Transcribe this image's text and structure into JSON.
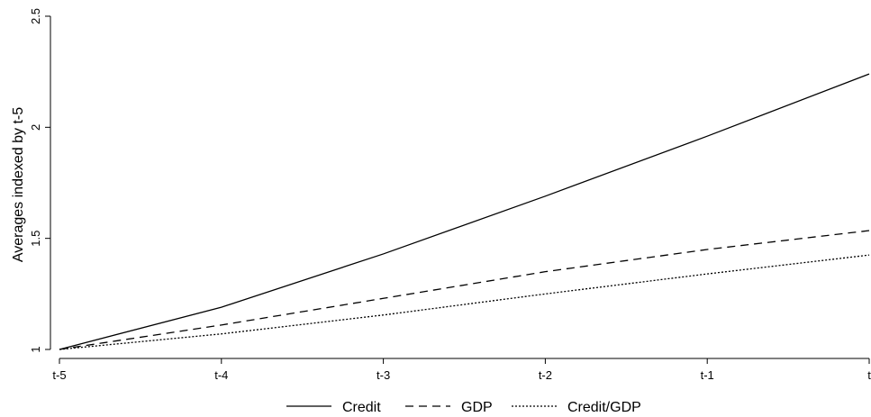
{
  "chart_data": {
    "type": "line",
    "title": "",
    "xlabel": "",
    "ylabel": "Averages indexed by t-5",
    "categories": [
      "t-5",
      "t-4",
      "t-3",
      "t-2",
      "t-1",
      "t"
    ],
    "yticks": [
      "1",
      "1.5",
      "2",
      "2.5"
    ],
    "ylim": [
      1,
      2.5
    ],
    "grid": false,
    "legend_position": "bottom",
    "series": [
      {
        "name": "Credit",
        "style": "solid",
        "values": [
          1.0,
          1.19,
          1.43,
          1.69,
          1.96,
          2.24
        ]
      },
      {
        "name": "GDP",
        "style": "dashed",
        "values": [
          1.0,
          1.11,
          1.23,
          1.35,
          1.45,
          1.535
        ]
      },
      {
        "name": "Credit/GDP",
        "style": "dotted",
        "values": [
          1.0,
          1.07,
          1.155,
          1.25,
          1.34,
          1.425
        ]
      }
    ]
  }
}
